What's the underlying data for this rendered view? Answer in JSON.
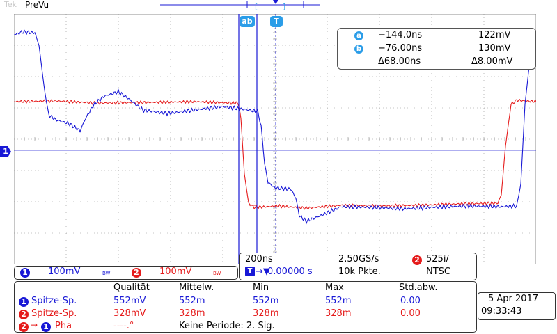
{
  "status": {
    "brand": "Tek",
    "mode": "PreVu"
  },
  "cursors": {
    "a_label": "a",
    "b_label": "b",
    "trigger_label": "T",
    "ab_label": "ab"
  },
  "cursor_readout": {
    "a_time": "−144.0ns",
    "a_volt": "122mV",
    "b_time": "−76.00ns",
    "b_volt": "130mV",
    "delta_time": "Δ68.00ns",
    "delta_volt": "Δ8.00mV"
  },
  "channels": [
    {
      "num": "1",
      "scale": "100mV",
      "bw": "BW",
      "color": "#1818d6"
    },
    {
      "num": "2",
      "scale": "100mV",
      "bw": "BW",
      "color": "#e51c1c"
    }
  ],
  "ch1_marker": "1",
  "timebase": {
    "horizontal": "200ns",
    "sample_rate": "2.50GS/s",
    "position": "0.00000 s",
    "record_length": "10k Pkte.",
    "trigger_channel": "2",
    "video_format": "525i/",
    "video_standard": "NTSC"
  },
  "measurements": {
    "headers": [
      "Qualität",
      "Mittelw.",
      "Min",
      "Max",
      "Std.abw."
    ],
    "rows": [
      {
        "channel": "1",
        "name": "Spitze-Sp.",
        "values": [
          "552mV",
          "552m",
          "552m",
          "552m",
          "0.00"
        ],
        "color": "#1818d6"
      },
      {
        "channel": "2",
        "name": "Spitze-Sp.",
        "values": [
          "328mV",
          "328m",
          "328m",
          "328m",
          "0.00"
        ],
        "color": "#e51c1c"
      }
    ],
    "phase": {
      "from": "2",
      "arrow": "→",
      "to": "1",
      "name": "Pha",
      "value": "----.°",
      "note": "Keine Periode: 2. Sig."
    }
  },
  "datetime": {
    "date": "5 Apr 2017",
    "time": "09:33:43"
  },
  "colors": {
    "ch1": "#1818d6",
    "ch2": "#e51c1c",
    "cursor": "#2b9de8",
    "grid": "#8c8c8c"
  }
}
